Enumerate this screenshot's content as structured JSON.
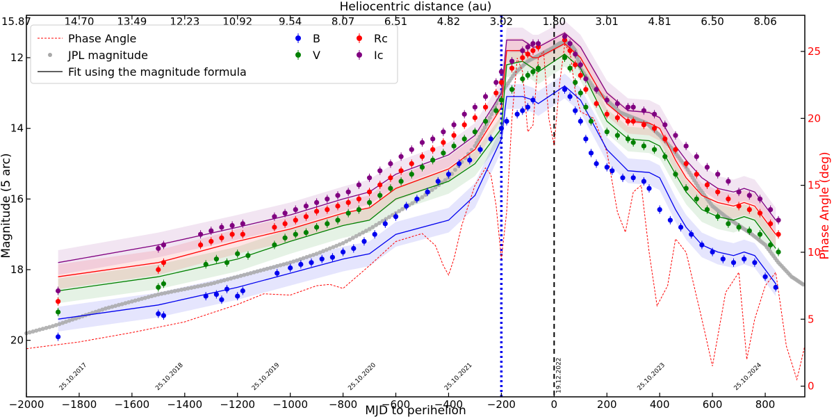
{
  "chart_data": {
    "type": "scatter",
    "title": "",
    "xlabel": "MJD to perihelion",
    "ylabel": "Magnitude (5 arc)",
    "top_xlabel": "Heliocentric distance (au)",
    "right_ylabel": "Phase Angle (deg)",
    "xlim": [
      -2000,
      950
    ],
    "ylim": [
      21.6,
      10.8
    ],
    "y2lim": [
      -0.8,
      27.7
    ],
    "xticks": [
      -2000,
      -1800,
      -1600,
      -1400,
      -1200,
      -1000,
      -800,
      -600,
      -400,
      -200,
      0,
      200,
      400,
      600,
      800
    ],
    "xtick_labels": [
      "−2000",
      "−1800",
      "−1600",
      "−1400",
      "−1200",
      "−1000",
      "−800",
      "−600",
      "−400",
      "−200",
      "0",
      "200",
      "400",
      "600",
      "800"
    ],
    "yticks": [
      12,
      14,
      16,
      18,
      20
    ],
    "y2ticks": [
      0,
      5,
      10,
      15,
      20,
      25
    ],
    "top_ticks": [
      {
        "x": -2000,
        "label": "15.87"
      },
      {
        "x": -1800,
        "label": "14.70"
      },
      {
        "x": -1600,
        "label": "13.49"
      },
      {
        "x": -1400,
        "label": "12.23"
      },
      {
        "x": -1200,
        "label": "10.92"
      },
      {
        "x": -1000,
        "label": "9.54"
      },
      {
        "x": -800,
        "label": "8.07"
      },
      {
        "x": -600,
        "label": "6.51"
      },
      {
        "x": -400,
        "label": "4.82"
      },
      {
        "x": -200,
        "label": "3.02"
      },
      {
        "x": 0,
        "label": "1.80"
      },
      {
        "x": 200,
        "label": "3.01"
      },
      {
        "x": 400,
        "label": "4.81"
      },
      {
        "x": 600,
        "label": "6.50"
      },
      {
        "x": 800,
        "label": "8.06"
      }
    ],
    "date_labels": [
      {
        "x": -1877,
        "label": "25.10.2017"
      },
      {
        "x": -1512,
        "label": "25.10.2018"
      },
      {
        "x": -1147,
        "label": "25.10.2019"
      },
      {
        "x": -782,
        "label": "25.10.2020"
      },
      {
        "x": -417,
        "label": "25.10.2021"
      },
      {
        "x": 0,
        "label": "19.12.2022"
      },
      {
        "x": 314,
        "label": "25.10.2023"
      },
      {
        "x": 680,
        "label": "25.10.2024"
      }
    ],
    "vlines": [
      {
        "x": -200,
        "style": "dotted",
        "color": "#0000ee"
      },
      {
        "x": 0,
        "style": "dashed",
        "color": "#000000"
      }
    ],
    "legend": {
      "placement": "top-left",
      "entries": [
        {
          "label": "Phase Angle",
          "marker": "dashed-line",
          "color": "#ff0000"
        },
        {
          "label": "JPL magnitude",
          "marker": "dot",
          "color": "#a8a8a8"
        },
        {
          "label": "Fit using the magnitude formula",
          "marker": "line",
          "color": "#000000"
        },
        {
          "label": "B",
          "marker": "errorbar",
          "color": "#0000ee"
        },
        {
          "label": "V",
          "marker": "errorbar",
          "color": "#008000"
        },
        {
          "label": "Rc",
          "marker": "errorbar",
          "color": "#ff0000"
        },
        {
          "label": "Ic",
          "marker": "errorbar",
          "color": "#800080"
        }
      ]
    },
    "series": [
      {
        "name": "JPL magnitude",
        "kind": "jpl",
        "color": "#a8a8a8",
        "x": [
          -2000,
          -1900,
          -1800,
          -1700,
          -1600,
          -1500,
          -1400,
          -1300,
          -1200,
          -1100,
          -1000,
          -900,
          -800,
          -700,
          -600,
          -500,
          -400,
          -300,
          -250,
          -200,
          -150,
          -100,
          -50,
          0,
          20,
          40,
          60,
          80,
          100,
          150,
          200,
          250,
          300,
          350,
          400,
          450,
          500,
          550,
          600,
          650,
          700,
          750,
          800,
          850,
          900,
          950
        ],
        "y": [
          19.8,
          19.6,
          19.35,
          19.1,
          18.9,
          18.7,
          18.55,
          18.4,
          18.2,
          18.0,
          17.8,
          17.55,
          17.25,
          16.85,
          16.4,
          15.95,
          15.4,
          14.5,
          13.8,
          13.0,
          12.45,
          12.1,
          11.9,
          11.7,
          11.6,
          11.55,
          11.6,
          11.8,
          12.3,
          12.85,
          13.2,
          13.55,
          13.7,
          13.85,
          14.2,
          14.6,
          15.1,
          15.7,
          16.2,
          16.5,
          16.75,
          17.0,
          17.3,
          17.8,
          18.2,
          18.45
        ]
      },
      {
        "name": "Phase Angle",
        "kind": "phase",
        "color": "#ff0000",
        "x": [
          -2000,
          -1800,
          -1600,
          -1400,
          -1200,
          -1100,
          -1000,
          -900,
          -850,
          -800,
          -700,
          -600,
          -500,
          -450,
          -420,
          -400,
          -380,
          -350,
          -300,
          -260,
          -240,
          -220,
          -200,
          -180,
          -160,
          -140,
          -120,
          -100,
          -80,
          -60,
          -40,
          -20,
          0,
          20,
          40,
          60,
          80,
          100,
          150,
          200,
          240,
          270,
          300,
          330,
          360,
          390,
          430,
          460,
          500,
          560,
          600,
          650,
          700,
          730,
          760,
          800,
          840,
          880,
          920,
          950
        ],
        "y": [
          2.8,
          3.3,
          4.0,
          4.8,
          6.1,
          6.9,
          6.8,
          7.5,
          7.6,
          7.3,
          9.0,
          10.8,
          11.4,
          10.5,
          9.0,
          8.3,
          9.5,
          12.0,
          15.0,
          16.3,
          15.8,
          13.5,
          9.5,
          13.0,
          20.0,
          24.5,
          23.5,
          19.0,
          19.5,
          24.5,
          25.0,
          20.0,
          18.0,
          22.5,
          25.5,
          25.0,
          22.0,
          20.5,
          20.0,
          17.5,
          13.0,
          11.5,
          14.5,
          15.0,
          10.0,
          6.0,
          7.5,
          11.0,
          10.0,
          5.0,
          1.5,
          7.0,
          8.5,
          2.0,
          5.0,
          7.5,
          8.5,
          3.0,
          0.5,
          3.0
        ]
      },
      {
        "name": "B",
        "kind": "obs",
        "color": "#0000ee",
        "x": [
          -1880,
          -1500,
          -1480,
          -1320,
          -1280,
          -1260,
          -1240,
          -1200,
          -1180,
          -1050,
          -1000,
          -960,
          -920,
          -880,
          -840,
          -800,
          -760,
          -720,
          -680,
          -640,
          -600,
          -560,
          -520,
          -480,
          -440,
          -400,
          -360,
          -320,
          -280,
          -240,
          -200,
          -180,
          -140,
          -120,
          -100,
          -80,
          40,
          60,
          80,
          100,
          120,
          140,
          160,
          200,
          220,
          260,
          300,
          340,
          360,
          400,
          440,
          480,
          520,
          560,
          600,
          640,
          680,
          720,
          760,
          800,
          840
        ],
        "y": [
          19.9,
          19.25,
          19.3,
          18.75,
          18.7,
          18.85,
          18.55,
          18.75,
          18.6,
          18.1,
          17.95,
          17.85,
          17.8,
          17.7,
          17.65,
          17.5,
          17.4,
          17.2,
          17.0,
          16.7,
          16.5,
          16.2,
          16.0,
          15.8,
          15.5,
          15.3,
          15.0,
          14.9,
          14.6,
          14.3,
          14.0,
          13.8,
          13.6,
          13.5,
          13.4,
          13.2,
          12.9,
          13.1,
          13.5,
          13.8,
          14.3,
          14.7,
          15.0,
          15.1,
          15.2,
          15.4,
          15.4,
          15.5,
          15.7,
          16.3,
          16.6,
          16.8,
          17.0,
          17.3,
          17.5,
          17.7,
          17.8,
          17.7,
          17.8,
          18.2,
          18.5
        ]
      },
      {
        "name": "V",
        "kind": "obs",
        "color": "#008000",
        "x": [
          -1880,
          -1500,
          -1480,
          -1320,
          -1280,
          -1240,
          -1200,
          -1160,
          -1060,
          -1020,
          -980,
          -940,
          -900,
          -860,
          -820,
          -780,
          -740,
          -700,
          -660,
          -620,
          -580,
          -540,
          -500,
          -460,
          -420,
          -380,
          -340,
          -300,
          -260,
          -220,
          -200,
          -160,
          -120,
          -100,
          -80,
          -60,
          40,
          60,
          80,
          100,
          120,
          140,
          200,
          240,
          280,
          300,
          340,
          380,
          420,
          460,
          500,
          540,
          580,
          620,
          660,
          700,
          740,
          780,
          820,
          850
        ],
        "y": [
          19.2,
          18.5,
          18.4,
          17.85,
          17.7,
          17.8,
          17.55,
          17.6,
          17.3,
          17.1,
          17.0,
          16.95,
          16.8,
          16.7,
          16.6,
          16.4,
          16.3,
          16.1,
          15.9,
          15.7,
          15.5,
          15.3,
          15.1,
          14.9,
          14.7,
          14.5,
          14.3,
          14.1,
          13.8,
          13.5,
          13.2,
          12.9,
          12.6,
          12.5,
          12.4,
          12.3,
          12.0,
          12.3,
          12.7,
          13.0,
          13.4,
          13.8,
          14.1,
          14.2,
          14.3,
          14.4,
          14.5,
          14.6,
          14.8,
          15.3,
          15.7,
          16.0,
          16.3,
          16.5,
          16.7,
          16.8,
          16.9,
          17.0,
          17.3,
          17.5
        ]
      },
      {
        "name": "Rc",
        "kind": "obs",
        "color": "#ff0000",
        "x": [
          -1880,
          -1500,
          -1480,
          -1340,
          -1300,
          -1260,
          -1220,
          -1180,
          -1060,
          -1020,
          -980,
          -940,
          -900,
          -860,
          -820,
          -780,
          -740,
          -700,
          -660,
          -620,
          -580,
          -540,
          -500,
          -460,
          -420,
          -380,
          -340,
          -300,
          -260,
          -220,
          -200,
          -160,
          -120,
          -100,
          -80,
          -60,
          40,
          60,
          80,
          100,
          120,
          160,
          200,
          240,
          280,
          300,
          340,
          380,
          420,
          460,
          500,
          540,
          580,
          620,
          660,
          700,
          740,
          780,
          820,
          850
        ],
        "y": [
          18.9,
          18.0,
          17.8,
          17.3,
          17.2,
          17.1,
          17.0,
          17.0,
          16.8,
          16.7,
          16.6,
          16.5,
          16.35,
          16.3,
          16.2,
          16.1,
          16.0,
          15.8,
          15.6,
          15.4,
          15.2,
          15.0,
          14.8,
          14.6,
          14.4,
          14.2,
          13.9,
          13.7,
          13.4,
          13.0,
          12.7,
          12.3,
          12.0,
          11.9,
          11.8,
          11.7,
          11.5,
          11.8,
          12.2,
          12.5,
          12.9,
          13.3,
          13.6,
          13.7,
          13.8,
          13.8,
          13.9,
          14.0,
          14.3,
          14.6,
          15.0,
          15.3,
          15.6,
          15.8,
          16.0,
          16.2,
          16.3,
          16.4,
          16.7,
          17.0
        ]
      },
      {
        "name": "Ic",
        "kind": "obs",
        "color": "#800080",
        "x": [
          -1880,
          -1500,
          -1480,
          -1340,
          -1300,
          -1260,
          -1220,
          -1180,
          -1060,
          -1020,
          -980,
          -940,
          -900,
          -860,
          -820,
          -780,
          -740,
          -700,
          -660,
          -620,
          -580,
          -540,
          -500,
          -460,
          -420,
          -380,
          -340,
          -300,
          -260,
          -220,
          -200,
          -160,
          -120,
          -100,
          -80,
          -60,
          40,
          60,
          80,
          100,
          120,
          160,
          200,
          240,
          280,
          300,
          340,
          380,
          420,
          460,
          500,
          540,
          580,
          620,
          660,
          700,
          740,
          780,
          820,
          850
        ],
        "y": [
          18.6,
          17.4,
          17.3,
          17.0,
          16.9,
          16.8,
          16.75,
          16.7,
          16.5,
          16.4,
          16.3,
          16.2,
          16.1,
          16.0,
          15.9,
          15.8,
          15.6,
          15.4,
          15.2,
          15.0,
          14.8,
          14.6,
          14.4,
          14.3,
          14.1,
          13.9,
          13.6,
          13.4,
          13.1,
          12.7,
          12.4,
          12.1,
          11.8,
          11.7,
          11.6,
          11.6,
          11.4,
          11.6,
          11.9,
          12.2,
          12.6,
          12.9,
          13.2,
          13.3,
          13.4,
          13.4,
          13.5,
          13.6,
          13.9,
          14.2,
          14.5,
          14.8,
          15.1,
          15.3,
          15.5,
          15.8,
          15.9,
          16.0,
          16.3,
          16.6
        ]
      }
    ],
    "fits": [
      {
        "color": "#0000ee",
        "x": [
          -1880,
          -1500,
          -1200,
          -1000,
          -800,
          -700,
          -600,
          -400,
          -300,
          -200,
          -180,
          -120,
          -80,
          -60,
          40,
          100,
          200,
          280,
          360,
          400,
          460,
          500,
          560,
          620,
          680,
          720,
          760,
          800,
          840
        ],
        "y": [
          19.4,
          19.0,
          18.5,
          18.1,
          17.7,
          17.55,
          17.0,
          16.6,
          15.9,
          14.3,
          13.1,
          13.1,
          13.2,
          13.3,
          12.8,
          13.2,
          14.6,
          15.2,
          15.25,
          15.4,
          16.3,
          16.8,
          17.3,
          17.5,
          17.6,
          17.5,
          17.6,
          18.0,
          18.4
        ]
      },
      {
        "color": "#008000",
        "x": [
          -1880,
          -1500,
          -1200,
          -1000,
          -800,
          -700,
          -600,
          -400,
          -300,
          -200,
          -180,
          -120,
          -80,
          -60,
          40,
          100,
          200,
          280,
          360,
          400,
          460,
          500,
          560,
          620,
          680,
          720,
          760,
          800,
          840
        ],
        "y": [
          18.6,
          18.2,
          17.7,
          17.2,
          16.75,
          16.6,
          16.0,
          15.5,
          15.0,
          14.0,
          12.2,
          12.1,
          12.3,
          12.4,
          11.9,
          12.3,
          13.8,
          14.3,
          14.35,
          14.5,
          15.3,
          15.8,
          16.3,
          16.5,
          16.6,
          16.5,
          16.6,
          17.0,
          17.4
        ]
      },
      {
        "color": "#ff0000",
        "x": [
          -1880,
          -1500,
          -1200,
          -1000,
          -800,
          -700,
          -600,
          -400,
          -300,
          -200,
          -180,
          -120,
          -80,
          -60,
          40,
          100,
          200,
          280,
          360,
          400,
          460,
          500,
          560,
          620,
          680,
          720,
          760,
          800,
          840
        ],
        "y": [
          18.2,
          17.8,
          17.2,
          16.85,
          16.4,
          16.25,
          15.7,
          15.15,
          14.6,
          13.4,
          11.8,
          11.8,
          12.0,
          12.0,
          11.6,
          12.0,
          13.3,
          13.8,
          13.85,
          14.0,
          14.9,
          15.4,
          15.9,
          16.1,
          16.2,
          16.1,
          16.2,
          16.6,
          17.0
        ]
      },
      {
        "color": "#800080",
        "x": [
          -1880,
          -1500,
          -1200,
          -1000,
          -800,
          -700,
          -600,
          -400,
          -300,
          -200,
          -180,
          -120,
          -80,
          -60,
          40,
          100,
          200,
          280,
          360,
          400,
          460,
          500,
          560,
          620,
          680,
          720,
          760,
          800,
          840
        ],
        "y": [
          17.8,
          17.3,
          16.8,
          16.45,
          16.0,
          15.8,
          15.3,
          14.75,
          14.2,
          13.0,
          11.5,
          11.5,
          11.7,
          11.7,
          11.3,
          11.7,
          13.0,
          13.5,
          13.55,
          13.7,
          14.5,
          14.9,
          15.4,
          15.7,
          15.8,
          15.7,
          15.8,
          16.2,
          16.6
        ]
      }
    ]
  }
}
